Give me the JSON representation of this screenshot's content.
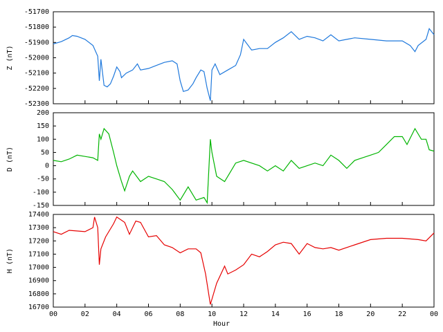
{
  "chart_data": [
    {
      "type": "line",
      "ylabel": "Z (nT)",
      "color": "#1e78dc",
      "xlim": [
        0,
        24
      ],
      "ylim": [
        -52300,
        -51700
      ],
      "yticks": [
        -51700,
        -51800,
        -51900,
        -52000,
        -52100,
        -52200,
        -52300
      ],
      "x": [
        0,
        0.5,
        1,
        1.2,
        1.5,
        2,
        2.5,
        2.8,
        2.9,
        3.0,
        3.2,
        3.4,
        3.6,
        3.8,
        4.0,
        4.2,
        4.3,
        4.6,
        5,
        5.3,
        5.5,
        6,
        6.5,
        7,
        7.5,
        7.8,
        8.0,
        8.2,
        8.5,
        8.8,
        9.0,
        9.3,
        9.5,
        9.7,
        9.9,
        10.0,
        10.2,
        10.5,
        11,
        11.5,
        11.8,
        12,
        12.5,
        13,
        13.5,
        14,
        14.5,
        15,
        15.5,
        16,
        16.5,
        17,
        17.5,
        18,
        18.5,
        19,
        20,
        21,
        22,
        22.5,
        22.8,
        23,
        23.5,
        23.7,
        24
      ],
      "values": [
        -51910,
        -51895,
        -51870,
        -51855,
        -51860,
        -51880,
        -51920,
        -51990,
        -52150,
        -52010,
        -52180,
        -52190,
        -52170,
        -52120,
        -52060,
        -52090,
        -52130,
        -52100,
        -52080,
        -52040,
        -52080,
        -52070,
        -52050,
        -52030,
        -52020,
        -52040,
        -52150,
        -52220,
        -52210,
        -52170,
        -52130,
        -52080,
        -52090,
        -52200,
        -52280,
        -52080,
        -52040,
        -52110,
        -52080,
        -52050,
        -51980,
        -51880,
        -51950,
        -51940,
        -51940,
        -51900,
        -51870,
        -51830,
        -51880,
        -51860,
        -51870,
        -51890,
        -51850,
        -51890,
        -51880,
        -51870,
        -51880,
        -51890,
        -51890,
        -51920,
        -51960,
        -51920,
        -51880,
        -51810,
        -51850
      ]
    },
    {
      "type": "line",
      "ylabel": "D (nT)",
      "color": "#00b400",
      "xlim": [
        0,
        24
      ],
      "ylim": [
        -150,
        200
      ],
      "yticks": [
        200,
        150,
        100,
        50,
        0,
        -50,
        -100,
        -150
      ],
      "x": [
        0,
        0.5,
        1,
        1.5,
        2,
        2.5,
        2.8,
        2.9,
        3.0,
        3.2,
        3.5,
        3.8,
        4.0,
        4.3,
        4.5,
        4.8,
        5,
        5.5,
        6,
        6.5,
        7,
        7.5,
        8,
        8.2,
        8.5,
        9,
        9.5,
        9.7,
        9.9,
        10,
        10.3,
        10.8,
        11.2,
        11.5,
        12,
        13,
        13.5,
        14,
        14.5,
        15,
        15.5,
        16,
        16.5,
        17,
        17.5,
        18,
        18.5,
        19,
        19.5,
        20,
        20.5,
        21,
        21.5,
        22,
        22.3,
        22.8,
        23.2,
        23.5,
        23.7,
        24
      ],
      "values": [
        20,
        15,
        25,
        40,
        35,
        30,
        20,
        120,
        100,
        140,
        120,
        50,
        0,
        -60,
        -95,
        -40,
        -20,
        -60,
        -40,
        -50,
        -60,
        -90,
        -130,
        -110,
        -80,
        -130,
        -120,
        -140,
        100,
        50,
        -40,
        -60,
        -20,
        10,
        20,
        0,
        -20,
        0,
        -20,
        20,
        -10,
        0,
        10,
        0,
        40,
        20,
        -10,
        20,
        30,
        40,
        50,
        80,
        110,
        110,
        80,
        140,
        100,
        100,
        60,
        55
      ]
    },
    {
      "type": "line",
      "ylabel": "H (nT)",
      "xlabel": "Hour",
      "color": "#e60000",
      "xlim": [
        0,
        24
      ],
      "ylim": [
        16700,
        17400
      ],
      "yticks": [
        17400,
        17300,
        17200,
        17100,
        17000,
        16900,
        16800,
        16700
      ],
      "xticks": [
        {
          "value": 0,
          "label": "00"
        },
        {
          "value": 2,
          "label": "02"
        },
        {
          "value": 4,
          "label": "04"
        },
        {
          "value": 6,
          "label": "06"
        },
        {
          "value": 8,
          "label": "08"
        },
        {
          "value": 10,
          "label": "10"
        },
        12,
        14,
        16,
        18,
        20,
        22,
        {
          "value": 24,
          "label": "00"
        }
      ],
      "x": [
        0,
        0.5,
        1,
        2,
        2.5,
        2.6,
        2.8,
        2.9,
        3.0,
        3.3,
        3.8,
        4.0,
        4.5,
        4.8,
        5.2,
        5.5,
        6,
        6.5,
        7,
        7.5,
        8,
        8.5,
        9,
        9.3,
        9.6,
        9.9,
        10,
        10.3,
        10.8,
        11,
        11.5,
        12,
        12.5,
        13,
        13.5,
        14,
        14.5,
        15,
        15.5,
        16,
        16.5,
        17,
        17.5,
        18,
        19,
        20,
        21,
        22,
        23,
        23.5,
        24
      ],
      "values": [
        17270,
        17250,
        17280,
        17270,
        17300,
        17380,
        17300,
        17020,
        17140,
        17230,
        17330,
        17380,
        17340,
        17250,
        17350,
        17340,
        17230,
        17240,
        17170,
        17150,
        17110,
        17140,
        17140,
        17110,
        16950,
        16720,
        16760,
        16880,
        17010,
        16950,
        16980,
        17020,
        17100,
        17080,
        17120,
        17170,
        17190,
        17180,
        17100,
        17180,
        17150,
        17140,
        17150,
        17130,
        17170,
        17210,
        17220,
        17220,
        17210,
        17200,
        17260
      ]
    }
  ]
}
